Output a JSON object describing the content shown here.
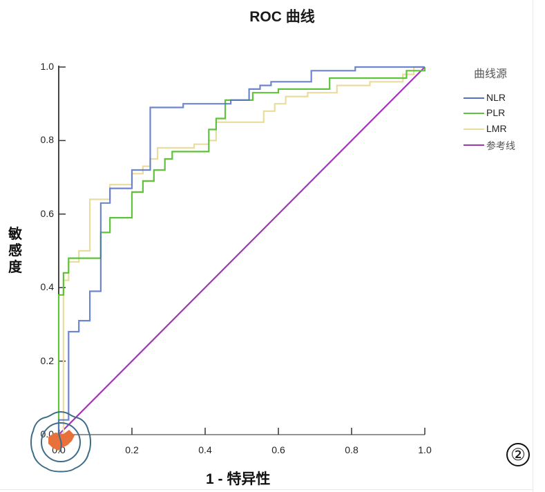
{
  "chart_data": {
    "type": "line",
    "title": "ROC 曲线",
    "xlabel": "1 - 特异性",
    "ylabel": "敏感度",
    "xlim": [
      0,
      1
    ],
    "ylim": [
      0,
      1
    ],
    "xticks": [
      "0.0",
      "0.2",
      "0.4",
      "0.6",
      "0.8",
      "1.0"
    ],
    "yticks": [
      "0.0",
      "0.2",
      "0.4",
      "0.6",
      "0.8",
      "1.0"
    ],
    "grid": false,
    "legend": {
      "title": "曲线源",
      "position": "right"
    },
    "series": [
      {
        "name": "NLR",
        "color": "#5470c6",
        "step": true,
        "points": [
          [
            0,
            0
          ],
          [
            0,
            0.04
          ],
          [
            0.027,
            0.04
          ],
          [
            0.027,
            0.28
          ],
          [
            0.055,
            0.28
          ],
          [
            0.055,
            0.31
          ],
          [
            0.085,
            0.31
          ],
          [
            0.085,
            0.39
          ],
          [
            0.115,
            0.39
          ],
          [
            0.115,
            0.63
          ],
          [
            0.14,
            0.63
          ],
          [
            0.14,
            0.67
          ],
          [
            0.2,
            0.67
          ],
          [
            0.2,
            0.72
          ],
          [
            0.25,
            0.72
          ],
          [
            0.25,
            0.89
          ],
          [
            0.34,
            0.89
          ],
          [
            0.34,
            0.9
          ],
          [
            0.47,
            0.9
          ],
          [
            0.47,
            0.91
          ],
          [
            0.52,
            0.91
          ],
          [
            0.52,
            0.94
          ],
          [
            0.55,
            0.94
          ],
          [
            0.55,
            0.95
          ],
          [
            0.58,
            0.95
          ],
          [
            0.58,
            0.96
          ],
          [
            0.69,
            0.96
          ],
          [
            0.69,
            0.99
          ],
          [
            0.81,
            0.99
          ],
          [
            0.81,
            1.0
          ],
          [
            1.0,
            1.0
          ]
        ]
      },
      {
        "name": "PLR",
        "color": "#5ec23a",
        "step": true,
        "points": [
          [
            0,
            0
          ],
          [
            0,
            0.38
          ],
          [
            0.013,
            0.38
          ],
          [
            0.013,
            0.43
          ],
          [
            0.013,
            0.44
          ],
          [
            0.027,
            0.44
          ],
          [
            0.027,
            0.48
          ],
          [
            0.115,
            0.48
          ],
          [
            0.115,
            0.55
          ],
          [
            0.14,
            0.55
          ],
          [
            0.14,
            0.59
          ],
          [
            0.2,
            0.59
          ],
          [
            0.2,
            0.66
          ],
          [
            0.23,
            0.66
          ],
          [
            0.23,
            0.69
          ],
          [
            0.26,
            0.69
          ],
          [
            0.26,
            0.72
          ],
          [
            0.29,
            0.72
          ],
          [
            0.29,
            0.75
          ],
          [
            0.31,
            0.75
          ],
          [
            0.31,
            0.77
          ],
          [
            0.41,
            0.77
          ],
          [
            0.41,
            0.83
          ],
          [
            0.43,
            0.83
          ],
          [
            0.43,
            0.86
          ],
          [
            0.455,
            0.86
          ],
          [
            0.455,
            0.91
          ],
          [
            0.53,
            0.91
          ],
          [
            0.53,
            0.93
          ],
          [
            0.6,
            0.93
          ],
          [
            0.6,
            0.94
          ],
          [
            0.74,
            0.94
          ],
          [
            0.74,
            0.97
          ],
          [
            0.95,
            0.97
          ],
          [
            0.95,
            0.99
          ],
          [
            1.0,
            0.99
          ],
          [
            1.0,
            1.0
          ]
        ]
      },
      {
        "name": "LMR",
        "color": "#e8dc9e",
        "step": true,
        "points": [
          [
            0,
            0
          ],
          [
            0.013,
            0
          ],
          [
            0.013,
            0.36
          ],
          [
            0.013,
            0.42
          ],
          [
            0.027,
            0.42
          ],
          [
            0.027,
            0.47
          ],
          [
            0.055,
            0.47
          ],
          [
            0.055,
            0.5
          ],
          [
            0.085,
            0.5
          ],
          [
            0.085,
            0.64
          ],
          [
            0.14,
            0.64
          ],
          [
            0.14,
            0.68
          ],
          [
            0.2,
            0.68
          ],
          [
            0.2,
            0.71
          ],
          [
            0.23,
            0.71
          ],
          [
            0.23,
            0.73
          ],
          [
            0.25,
            0.73
          ],
          [
            0.25,
            0.75
          ],
          [
            0.27,
            0.75
          ],
          [
            0.27,
            0.78
          ],
          [
            0.37,
            0.78
          ],
          [
            0.37,
            0.79
          ],
          [
            0.41,
            0.79
          ],
          [
            0.41,
            0.8
          ],
          [
            0.43,
            0.8
          ],
          [
            0.43,
            0.85
          ],
          [
            0.56,
            0.85
          ],
          [
            0.56,
            0.88
          ],
          [
            0.59,
            0.88
          ],
          [
            0.59,
            0.9
          ],
          [
            0.62,
            0.9
          ],
          [
            0.62,
            0.92
          ],
          [
            0.68,
            0.92
          ],
          [
            0.68,
            0.93
          ],
          [
            0.76,
            0.93
          ],
          [
            0.76,
            0.95
          ],
          [
            0.85,
            0.95
          ],
          [
            0.85,
            0.96
          ],
          [
            0.94,
            0.96
          ],
          [
            0.94,
            0.98
          ],
          [
            0.97,
            0.98
          ],
          [
            0.97,
            1.0
          ],
          [
            1.0,
            1.0
          ]
        ]
      },
      {
        "name": "参考线",
        "color": "#a035b8",
        "step": false,
        "points": [
          [
            0,
            0
          ],
          [
            1,
            1
          ]
        ]
      }
    ]
  },
  "figure_label": "②"
}
